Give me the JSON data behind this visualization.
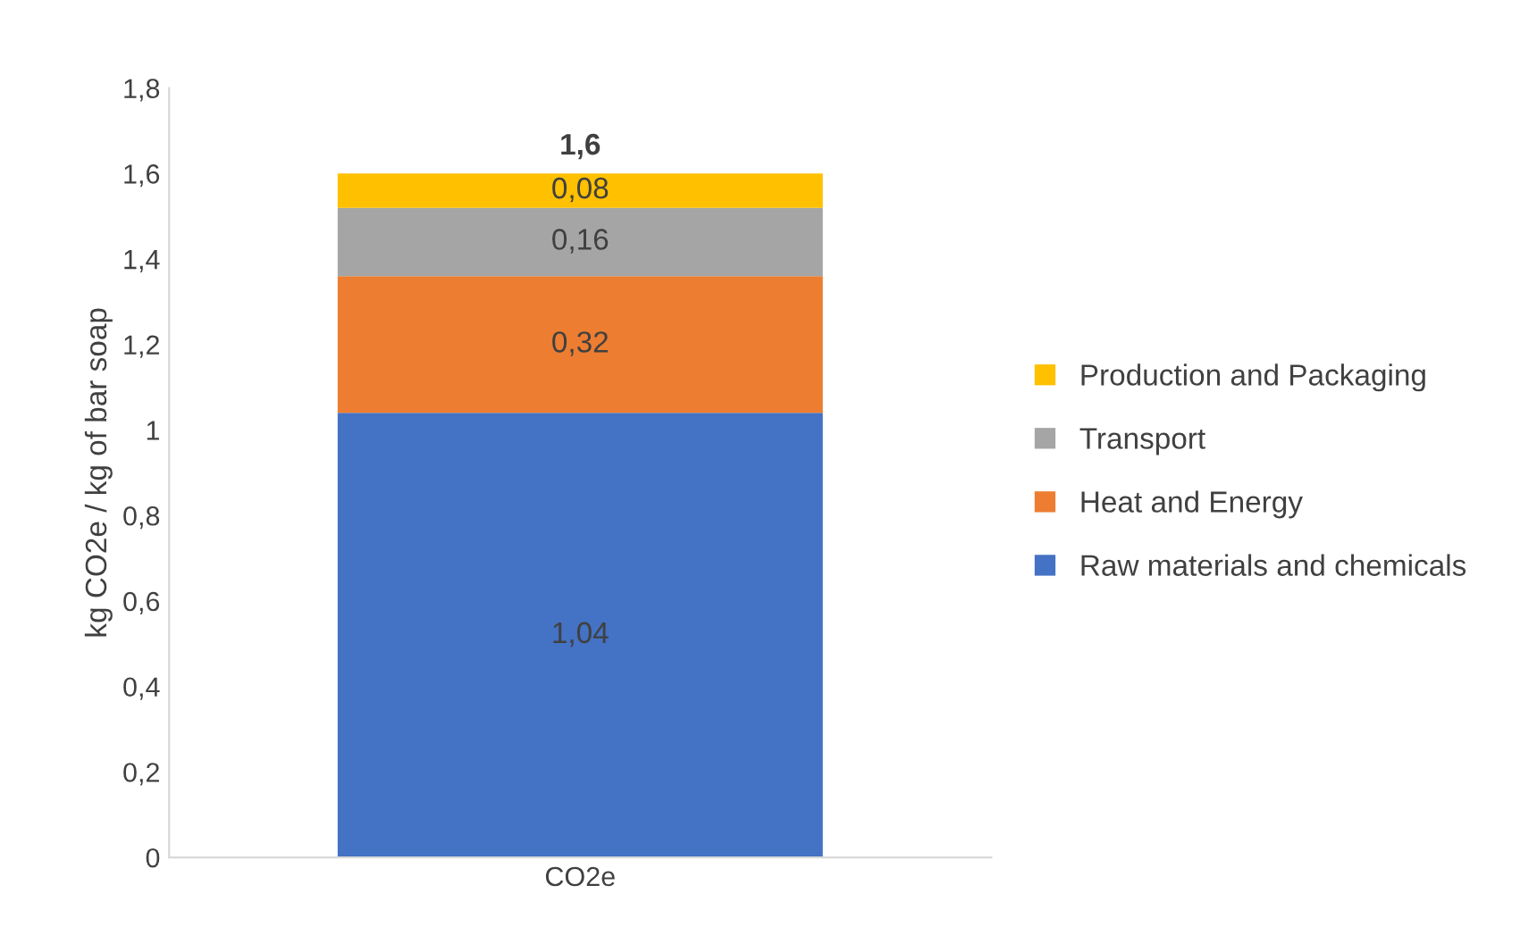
{
  "chart_data": {
    "type": "bar",
    "stacked": true,
    "ylabel": "kg CO2e / kg of bar soap",
    "categories": [
      "CO2e"
    ],
    "series": [
      {
        "name": "Raw materials and chemicals",
        "color": "#4472c4",
        "values": [
          1.04
        ],
        "value_labels": [
          "1,04"
        ]
      },
      {
        "name": "Heat and Energy",
        "color": "#ed7d31",
        "values": [
          0.32
        ],
        "value_labels": [
          "0,32"
        ]
      },
      {
        "name": "Transport",
        "color": "#a5a5a5",
        "values": [
          0.16
        ],
        "value_labels": [
          "0,16"
        ]
      },
      {
        "name": "Production and Packaging",
        "color": "#ffc000",
        "values": [
          0.08
        ],
        "value_labels": [
          "0,08"
        ]
      }
    ],
    "totals": [
      "1,6"
    ],
    "ylim": [
      0,
      1.8
    ],
    "yticks": [
      0,
      {
        "value": 0.2,
        "label": "0,2"
      },
      {
        "value": 0.4,
        "label": "0,4"
      },
      {
        "value": 0.6,
        "label": "0,6"
      },
      {
        "value": 0.8,
        "label": "0,8"
      },
      1,
      {
        "value": 1.2,
        "label": "1,2"
      },
      {
        "value": 1.4,
        "label": "1,4"
      },
      {
        "value": 1.6,
        "label": "1,6"
      },
      {
        "value": 1.8,
        "label": "1,8"
      }
    ],
    "grid": false,
    "legend": "right"
  }
}
